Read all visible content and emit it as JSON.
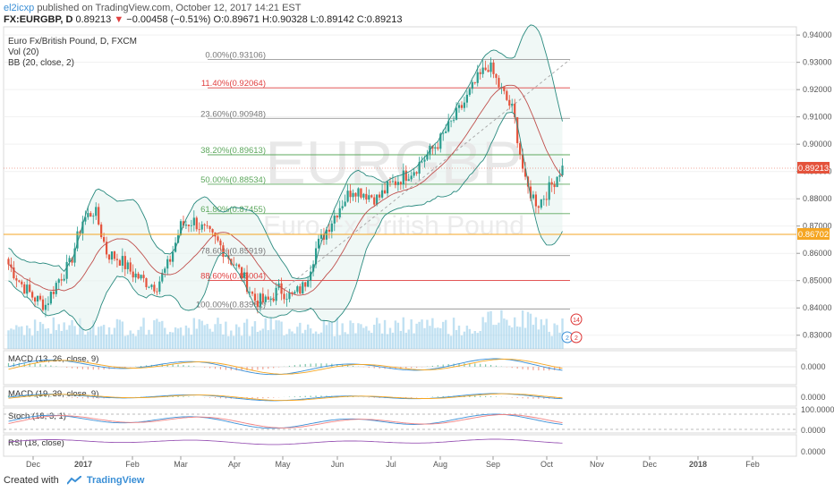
{
  "header": {
    "user": "el2icxp",
    "published": "published on TradingView.com, October 12, 2017 14:21 EST",
    "symbol": "FX:EURGBP, D",
    "last": "0.89213",
    "arrow": "▼",
    "change": "−0.00458 (−0.51%)",
    "ohlc": "O:0.89671 H:0.90328 L:0.89142 C:0.89213"
  },
  "legend": {
    "title": "Euro Fx/British Pound, D, FXCM",
    "vol": "Vol (20)",
    "bb": "BB (20, close, 2)"
  },
  "watermark": {
    "main": "EURGBP",
    "sub": "Euro Fx/British Pound"
  },
  "price_badges": {
    "last": "0.89213",
    "line": "0.86702"
  },
  "panes": {
    "macd1": {
      "label": "MACD (13, 26, close, 9)",
      "zero": "0.0000"
    },
    "macd2": {
      "label": "MACD (19, 39, close, 9)",
      "zero": "0.0000"
    },
    "stoch": {
      "label": "Stoch (18, 3, 1)",
      "top": "100.0000",
      "bottom": "0.0000"
    },
    "rsi": {
      "label": "RSI (18, close)",
      "bottom": "0.0000"
    }
  },
  "event_badges": [
    "14",
    "2",
    "2"
  ],
  "footer": {
    "created": "Created with",
    "brand": "TradingView"
  },
  "colors": {
    "up": "#2a9d8f",
    "down": "#e4533c",
    "bb": "#2a8a7f",
    "basis": "#c0504d",
    "volume": "#8ec9e8",
    "fib_red": "#e04040",
    "fib_green": "#5ea85e",
    "fib_gray": "#999999",
    "orange_line": "#f5a623",
    "accent": "#3a8fd6"
  },
  "chart_data": {
    "type": "candlestick",
    "y_axis": {
      "range": [
        0.825,
        0.943
      ],
      "ticks": [
        "0.94000",
        "0.93000",
        "0.92000",
        "0.91000",
        "0.90000",
        "0.89000",
        "0.88000",
        "0.87000",
        "0.86000",
        "0.85000",
        "0.84000",
        "0.83000"
      ]
    },
    "x_axis": {
      "ticks": [
        "Dec",
        "2017",
        "Feb",
        "Mar",
        "Apr",
        "May",
        "Jun",
        "Jul",
        "Aug",
        "Sep",
        "Oct",
        "Nov",
        "Dec",
        "2018",
        "Feb"
      ]
    },
    "fib_levels": [
      {
        "pct": "0.00%",
        "label": "0.00%(0.93106)",
        "price": 0.93106,
        "color": "gray"
      },
      {
        "pct": "11.40%",
        "label": "11.40%(0.92064)",
        "price": 0.92064,
        "color": "red"
      },
      {
        "pct": "23.60%",
        "label": "23.60%(0.90948)",
        "price": 0.90948,
        "color": "gray"
      },
      {
        "pct": "38.20%",
        "label": "38.20%(0.89613)",
        "price": 0.89613,
        "color": "green"
      },
      {
        "pct": "50.00%",
        "label": "50.00%(0.88534)",
        "price": 0.88534,
        "color": "green"
      },
      {
        "pct": "61.80%",
        "label": "61.80%(0.87455)",
        "price": 0.87455,
        "color": "green"
      },
      {
        "pct": "78.60%",
        "label": "78.60%(0.85919)",
        "price": 0.85919,
        "color": "gray"
      },
      {
        "pct": "88.60%",
        "label": "88.60%(0.85004)",
        "price": 0.85004,
        "color": "red"
      },
      {
        "pct": "100.00%",
        "label": "100.00%(0.83962)",
        "price": 0.83962,
        "color": "gray"
      }
    ],
    "close_series": [
      {
        "month": "2016-11-28",
        "close": 0.856
      },
      {
        "month": "2016-12-05",
        "close": 0.849
      },
      {
        "month": "2016-12-12",
        "close": 0.844
      },
      {
        "month": "2016-12-19",
        "close": 0.841
      },
      {
        "month": "2016-12-26",
        "close": 0.85
      },
      {
        "month": "2017-01-02",
        "close": 0.856
      },
      {
        "month": "2017-01-09",
        "close": 0.872
      },
      {
        "month": "2017-01-16",
        "close": 0.876
      },
      {
        "month": "2017-01-23",
        "close": 0.86
      },
      {
        "month": "2017-01-30",
        "close": 0.858
      },
      {
        "month": "2017-02-06",
        "close": 0.853
      },
      {
        "month": "2017-02-13",
        "close": 0.85
      },
      {
        "month": "2017-02-20",
        "close": 0.848
      },
      {
        "month": "2017-02-27",
        "close": 0.856
      },
      {
        "month": "2017-03-06",
        "close": 0.87
      },
      {
        "month": "2017-03-13",
        "close": 0.872
      },
      {
        "month": "2017-03-20",
        "close": 0.868
      },
      {
        "month": "2017-03-27",
        "close": 0.864
      },
      {
        "month": "2017-04-03",
        "close": 0.858
      },
      {
        "month": "2017-04-10",
        "close": 0.852
      },
      {
        "month": "2017-04-17",
        "close": 0.843
      },
      {
        "month": "2017-04-24",
        "close": 0.842
      },
      {
        "month": "2017-05-01",
        "close": 0.847
      },
      {
        "month": "2017-05-08",
        "close": 0.844
      },
      {
        "month": "2017-05-15",
        "close": 0.848
      },
      {
        "month": "2017-05-22",
        "close": 0.862
      },
      {
        "month": "2017-05-29",
        "close": 0.87
      },
      {
        "month": "2017-06-05",
        "close": 0.878
      },
      {
        "month": "2017-06-12",
        "close": 0.884
      },
      {
        "month": "2017-06-19",
        "close": 0.882
      },
      {
        "month": "2017-06-26",
        "close": 0.88
      },
      {
        "month": "2017-07-03",
        "close": 0.885
      },
      {
        "month": "2017-07-10",
        "close": 0.888
      },
      {
        "month": "2017-07-17",
        "close": 0.891
      },
      {
        "month": "2017-07-24",
        "close": 0.896
      },
      {
        "month": "2017-07-31",
        "close": 0.901
      },
      {
        "month": "2017-08-07",
        "close": 0.908
      },
      {
        "month": "2017-08-14",
        "close": 0.915
      },
      {
        "month": "2017-08-21",
        "close": 0.923
      },
      {
        "month": "2017-08-28",
        "close": 0.929
      },
      {
        "month": "2017-09-04",
        "close": 0.92
      },
      {
        "month": "2017-09-11",
        "close": 0.912
      },
      {
        "month": "2017-09-18",
        "close": 0.885
      },
      {
        "month": "2017-09-25",
        "close": 0.878
      },
      {
        "month": "2017-10-02",
        "close": 0.884
      },
      {
        "month": "2017-10-09",
        "close": 0.8921
      }
    ]
  }
}
